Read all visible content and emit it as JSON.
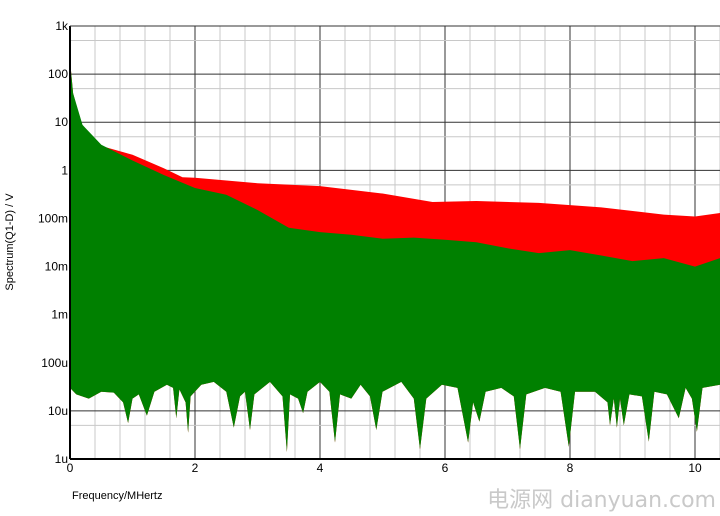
{
  "chart_data": {
    "type": "area",
    "xlabel": "Frequency/MHertz",
    "ylabel": "Spectrum(Q1-D) / V",
    "xlim": [
      0,
      10.4
    ],
    "ylim": [
      1e-06,
      1000
    ],
    "yscale": "log",
    "grid": true,
    "legend": "none",
    "x_ticks": [
      0,
      2,
      4,
      6,
      8,
      10
    ],
    "x_tick_labels": [
      "0",
      "2",
      "4",
      "6",
      "8",
      "10"
    ],
    "y_ticks": [
      1000,
      100,
      10,
      1,
      0.1,
      0.01,
      0.001,
      0.0001,
      1e-05,
      1e-06
    ],
    "y_tick_labels": [
      "1k",
      "100",
      "10",
      "1",
      "100m",
      "10m",
      "1m",
      "100u",
      "10u",
      "1u"
    ],
    "series": [
      {
        "color": "#ff0000",
        "upper_envelope": [
          [
            0,
            195
          ],
          [
            0.05,
            40
          ],
          [
            0.15,
            12
          ],
          [
            0.3,
            4.3
          ],
          [
            0.5,
            3.2
          ],
          [
            1.0,
            2.1
          ],
          [
            1.5,
            1.1
          ],
          [
            1.8,
            0.72
          ],
          [
            2.0,
            0.7
          ],
          [
            3.0,
            0.54
          ],
          [
            4.0,
            0.47
          ],
          [
            5.0,
            0.33
          ],
          [
            5.8,
            0.22
          ],
          [
            6.5,
            0.23
          ],
          [
            7.5,
            0.21
          ],
          [
            8.5,
            0.17
          ],
          [
            9.5,
            0.12
          ],
          [
            10.0,
            0.11
          ],
          [
            10.4,
            0.13
          ]
        ]
      },
      {
        "color": "#008000",
        "upper_envelope": [
          [
            0,
            195
          ],
          [
            0.05,
            40
          ],
          [
            0.2,
            8.8
          ],
          [
            0.5,
            3.4
          ],
          [
            1.0,
            1.6
          ],
          [
            1.5,
            0.8
          ],
          [
            2.0,
            0.43
          ],
          [
            2.5,
            0.31
          ],
          [
            3.0,
            0.15
          ],
          [
            3.5,
            0.064
          ],
          [
            4.0,
            0.052
          ],
          [
            4.5,
            0.046
          ],
          [
            5.0,
            0.038
          ],
          [
            5.5,
            0.04
          ],
          [
            6.0,
            0.036
          ],
          [
            6.5,
            0.032
          ],
          [
            7.0,
            0.024
          ],
          [
            7.5,
            0.019
          ],
          [
            8.0,
            0.022
          ],
          [
            8.5,
            0.017
          ],
          [
            9.0,
            0.013
          ],
          [
            9.5,
            0.015
          ],
          [
            10.0,
            0.01
          ],
          [
            10.4,
            0.015
          ]
        ],
        "lower_envelope": [
          [
            0,
            3e-05
          ],
          [
            0.1,
            2.2e-05
          ],
          [
            0.3,
            1.8e-05
          ],
          [
            0.5,
            2.5e-05
          ],
          [
            0.7,
            2.4e-05
          ],
          [
            0.85,
            1.5e-05
          ],
          [
            0.93,
            5.6e-06
          ],
          [
            1.0,
            1.8e-05
          ],
          [
            1.1,
            2.2e-05
          ],
          [
            1.23,
            8e-06
          ],
          [
            1.35,
            2.5e-05
          ],
          [
            1.55,
            3.5e-05
          ],
          [
            1.65,
            3e-05
          ],
          [
            1.7,
            7e-06
          ],
          [
            1.75,
            2.8e-05
          ],
          [
            1.85,
            1.5e-05
          ],
          [
            1.89,
            3.5e-06
          ],
          [
            1.93,
            2e-05
          ],
          [
            2.1,
            3.5e-05
          ],
          [
            2.3,
            4e-05
          ],
          [
            2.5,
            2.5e-05
          ],
          [
            2.62,
            4.5e-06
          ],
          [
            2.72,
            2e-05
          ],
          [
            2.8,
            2.5e-05
          ],
          [
            2.88,
            4e-06
          ],
          [
            2.95,
            2.2e-05
          ],
          [
            3.2,
            4e-05
          ],
          [
            3.4,
            2e-05
          ],
          [
            3.47,
            1.4e-06
          ],
          [
            3.52,
            2.2e-05
          ],
          [
            3.65,
            1.8e-05
          ],
          [
            3.73,
            9e-06
          ],
          [
            3.8,
            2.5e-05
          ],
          [
            4.0,
            4e-05
          ],
          [
            4.15,
            2.5e-05
          ],
          [
            4.24,
            2.2e-06
          ],
          [
            4.32,
            2.2e-05
          ],
          [
            4.5,
            1.8e-05
          ],
          [
            4.65,
            3.5e-05
          ],
          [
            4.8,
            2e-05
          ],
          [
            4.9,
            4e-06
          ],
          [
            5.0,
            2.5e-05
          ],
          [
            5.3,
            4e-05
          ],
          [
            5.5,
            1.8e-05
          ],
          [
            5.6,
            1.6e-06
          ],
          [
            5.7,
            1.8e-05
          ],
          [
            5.95,
            3.5e-05
          ],
          [
            6.2,
            3e-05
          ],
          [
            6.37,
            2.2e-06
          ],
          [
            6.45,
            1.5e-05
          ],
          [
            6.55,
            6e-06
          ],
          [
            6.65,
            2.5e-05
          ],
          [
            6.9,
            3e-05
          ],
          [
            7.1,
            2e-05
          ],
          [
            7.2,
            1.6e-06
          ],
          [
            7.3,
            2.2e-05
          ],
          [
            7.6,
            3e-05
          ],
          [
            7.85,
            2.5e-05
          ],
          [
            7.98,
            1.8e-06
          ],
          [
            8.08,
            2.5e-05
          ],
          [
            8.4,
            2.5e-05
          ],
          [
            8.6,
            1.5e-05
          ],
          [
            8.64,
            5e-06
          ],
          [
            8.7,
            1.8e-05
          ],
          [
            8.75,
            4.5e-06
          ],
          [
            8.8,
            1.8e-05
          ],
          [
            8.86,
            5e-06
          ],
          [
            8.95,
            2.2e-05
          ],
          [
            9.15,
            2e-05
          ],
          [
            9.26,
            2.3e-06
          ],
          [
            9.35,
            2.5e-05
          ],
          [
            9.55,
            2.2e-05
          ],
          [
            9.74,
            7e-06
          ],
          [
            9.85,
            3e-05
          ],
          [
            9.95,
            1.8e-05
          ],
          [
            10.03,
            3.7e-06
          ],
          [
            10.12,
            3e-05
          ],
          [
            10.4,
            3.5e-05
          ]
        ]
      }
    ]
  },
  "watermark": "电源网 dianyuan.com"
}
